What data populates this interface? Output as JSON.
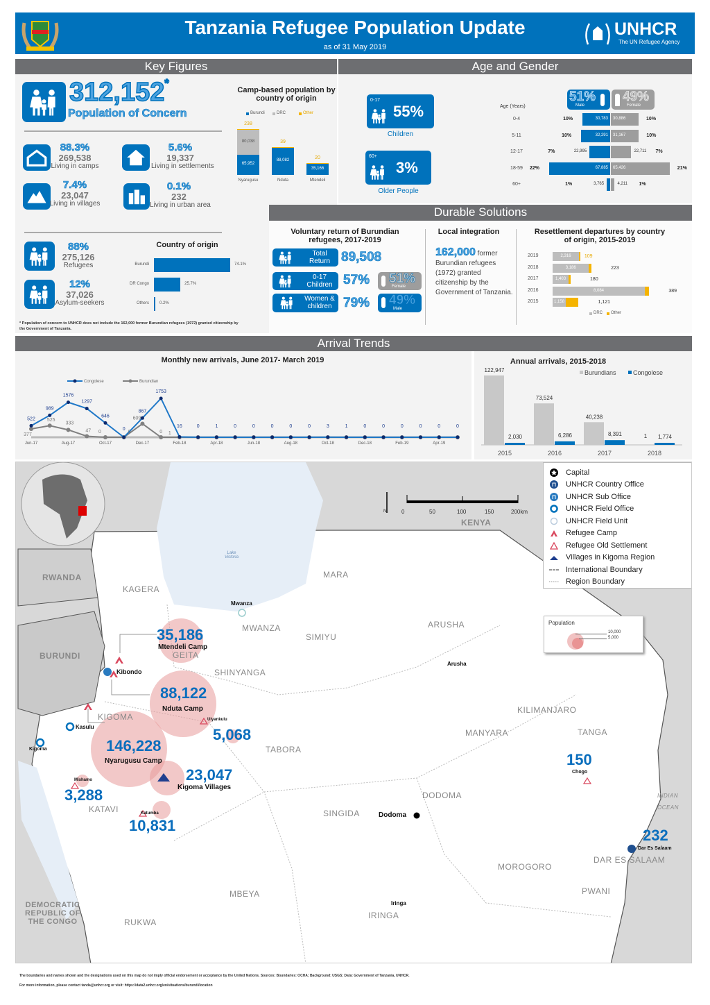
{
  "header": {
    "title": "Tanzania Refugee Population Update",
    "subtitle": "as of 31 May 2019",
    "logo_text": "UNHCR",
    "logo_tagline": "The UN Refugee Agency",
    "brand_color": "#0072bc"
  },
  "sections": {
    "key_figures": "Key Figures",
    "age_gender": "Age and Gender",
    "durable": "Durable Solutions",
    "arrivals": "Arrival Trends"
  },
  "key_figures": {
    "total": "312,152",
    "total_mark": "*",
    "total_label": "Population of Concern",
    "items": [
      {
        "pct": "88.3%",
        "value": "269,538",
        "label": "Living in camps",
        "icon": "camp-icon"
      },
      {
        "pct": "5.6%",
        "value": "19,337",
        "label": "Living in settlements",
        "icon": "house-icon"
      },
      {
        "pct": "7.4%",
        "value": "23,047",
        "label": "Living in villages",
        "icon": "mountain-icon"
      },
      {
        "pct": "0.1%",
        "value": "232",
        "label": "Living in urban area",
        "icon": "city-icon"
      }
    ],
    "status": [
      {
        "pct": "88%",
        "value": "275,126",
        "label": "Refugees"
      },
      {
        "pct": "12%",
        "value": "37,026",
        "label": "Asylum-seekers"
      }
    ],
    "footnote": "* Population of concern to UNHCR does not include the 162,000 former Burundian refugees (1972) granted citizenship by the Government of Tanzania."
  },
  "chart_data": [
    {
      "id": "camp",
      "type": "bar",
      "stacked": true,
      "title": "Camp-based population by country of origin",
      "categories": [
        "Nyarugusu",
        "Nduta",
        "Mtendeli"
      ],
      "series": [
        {
          "name": "Burundi",
          "values": [
            65952,
            88082,
            35166
          ],
          "color": "#0072bc"
        },
        {
          "name": "DRC",
          "values": [
            80038,
            0,
            0
          ],
          "color": "#bdbdbd"
        },
        {
          "name": "Other",
          "values": [
            238,
            39,
            20
          ],
          "color": "#f5b400"
        }
      ],
      "labels": [
        [
          "65,952",
          "88,082",
          "35,166"
        ],
        [
          "80,038",
          "",
          ""
        ],
        [
          "238",
          "39",
          "20"
        ]
      ]
    },
    {
      "id": "origin",
      "type": "bar",
      "orientation": "horizontal",
      "title": "Country of origin",
      "categories": [
        "Burundi",
        "DR Congo",
        "Others"
      ],
      "values": [
        74.1,
        25.7,
        0.2
      ],
      "labels": [
        "74.1%",
        "25.7%",
        "0.2%"
      ],
      "color": "#0072bc"
    },
    {
      "id": "pyramid",
      "type": "bar",
      "orientation": "horizontal",
      "axis_label": "Age (Years)",
      "categories": [
        "0-4",
        "5-11",
        "12-17",
        "18-59",
        "60+"
      ],
      "series": [
        {
          "name": "Male",
          "values": [
            30783,
            32291,
            22995,
            67885,
            3765
          ],
          "pct": [
            "10%",
            "10%",
            "7%",
            "22%",
            "1%"
          ],
          "labels": [
            "30,783",
            "32,291",
            "22,995",
            "67,885",
            "3,765"
          ],
          "color": "#0072bc"
        },
        {
          "name": "Female",
          "values": [
            30886,
            31167,
            22711,
            65426,
            4211
          ],
          "pct": [
            "10%",
            "10%",
            "7%",
            "21%",
            "1%"
          ],
          "labels": [
            "30,886",
            "31,167",
            "22,711",
            "65,426",
            "4,211"
          ],
          "color": "#9d9d9d"
        }
      ]
    },
    {
      "id": "resettle",
      "type": "bar",
      "orientation": "horizontal",
      "stacked": true,
      "title": "Resettlement departures by country of origin, 2015-2019",
      "categories": [
        "2019",
        "2018",
        "2017",
        "2016",
        "2015"
      ],
      "series": [
        {
          "name": "DRC",
          "values": [
            2316,
            3186,
            1403,
            8084,
            1158
          ],
          "labels": [
            "2,316",
            "3,186",
            "1,403",
            "8,084",
            "1,158"
          ],
          "color": "#bdbdbd"
        },
        {
          "name": "Other",
          "values": [
            109,
            223,
            180,
            389,
            1121
          ],
          "labels": [
            "109",
            "223",
            "180",
            "389",
            "1,121"
          ],
          "color": "#f5b400"
        }
      ]
    },
    {
      "id": "monthly",
      "type": "line",
      "title": "Monthly new arrivals, June 2017- March 2019",
      "x": [
        "Jun-17",
        "Jul-17",
        "Aug-17",
        "Sep-17",
        "Oct-17",
        "Nov-17",
        "Dec-17",
        "Jan-18",
        "Feb-18",
        "Mar-18",
        "Apr-18",
        "May-18",
        "Jun-18",
        "Jul-18",
        "Aug-18",
        "Sep-18",
        "Oct-18",
        "Nov-18",
        "Dec-18",
        "Jan-19",
        "Feb-19",
        "Mar-19",
        "Apr-19",
        "May-19"
      ],
      "tick_labels": [
        "Jun-17",
        "Aug-17",
        "Oct-17",
        "Dec-17",
        "Feb-18",
        "Apr-18",
        "Jun-18",
        "Aug-18",
        "Oct-18",
        "Dec-18",
        "Feb-19",
        "Apr-19"
      ],
      "series": [
        {
          "name": "Congolese",
          "values": [
            522,
            989,
            1576,
            1297,
            646,
            0,
            867,
            1753,
            16,
            0,
            1,
            0,
            0,
            0,
            0,
            0,
            3,
            1,
            0,
            0,
            0,
            0,
            0,
            0
          ],
          "color": "#1f78c8"
        },
        {
          "name": "Burundian",
          "values": [
            377,
            525,
            333,
            47,
            0,
            0,
            609,
            0,
            1,
            0,
            0,
            0,
            0,
            0,
            0,
            0,
            0,
            0,
            0,
            0,
            0,
            0,
            0,
            0
          ],
          "color": "#808080"
        }
      ]
    },
    {
      "id": "annual",
      "type": "bar",
      "title": "Annual arrivals, 2015-2018",
      "categories": [
        "2015",
        "2016",
        "2017",
        "2018"
      ],
      "series": [
        {
          "name": "Burundians",
          "values": [
            122947,
            73524,
            40238,
            1
          ],
          "labels": [
            "122,947",
            "73,524",
            "40,238",
            "1"
          ],
          "color": "#c8c8c8"
        },
        {
          "name": "Congolese",
          "values": [
            2030,
            6286,
            8391,
            1774
          ],
          "labels": [
            "2,030",
            "6,286",
            "8,391",
            "1,774"
          ],
          "color": "#0072bc"
        }
      ]
    }
  ],
  "age_gender": {
    "children": {
      "range": "0-17",
      "pct": "55%",
      "label": "Children"
    },
    "older": {
      "range": "60+",
      "pct": "3%",
      "label": "Older People"
    },
    "male": {
      "pct": "51%",
      "label": "Male"
    },
    "female": {
      "pct": "49%",
      "label": "Female"
    }
  },
  "durable": {
    "voluntary_title": "Voluntary return of Burundian refugees,  2017-2019",
    "total_label": "Total Return",
    "total": "89,508",
    "children_label": "0-17 Children",
    "children_pct": "57%",
    "women_label": "Women & children",
    "women_pct": "79%",
    "female_pct": "51%",
    "female_label": "Female",
    "male_pct": "49%",
    "male_label": "Male",
    "local_title": "Local integration",
    "local_num": "162,000",
    "local_text1": " former",
    "local_text2": "Burundian refugees (1972) granted citizenship by the Government of Tanzania."
  },
  "map": {
    "legend": [
      "Capital",
      "UNHCR Country Office",
      "UNHCR Sub Office",
      "UNHCR Field Office",
      "UNHCR Field Unit",
      "Refugee Camp",
      "Refugee Old Settlement",
      "Villages in Kigoma Region",
      "International Boundary",
      "Region Boundary"
    ],
    "population_legend": {
      "title": "Population",
      "values": [
        "10,000",
        "5,000"
      ]
    },
    "scale": [
      "0",
      "50",
      "100",
      "150",
      "200km"
    ],
    "north": "N",
    "countries": {
      "rwanda": "RWANDA",
      "burundi": "BURUNDI",
      "kenya": "KENYA",
      "drc": "DEMOCRATIC REPUBLIC OF THE CONGO",
      "ocean": "INDIAN OCEAN",
      "lake": "Lake Victoria"
    },
    "regions": [
      "KAGERA",
      "MARA",
      "MWANZA",
      "SIMIYU",
      "ARUSHA",
      "GEITA",
      "SHINYANGA",
      "KIGOMA",
      "KILIMANJARO",
      "MANYARA",
      "TANGA",
      "TABORA",
      "DODOMA",
      "SINGIDA",
      "KATAVI",
      "MOROGORO",
      "DAR ES SALAAM",
      "PWANI",
      "MBEYA",
      "IRINGA",
      "RUKWA"
    ],
    "cities": [
      "Mwanza",
      "Arusha",
      "Dodoma",
      "Kibondo",
      "Kasulu",
      "Kigoma",
      "Ulyankulu",
      "Mishamo",
      "Katumba",
      "Chogo",
      "Dar Es Salaam",
      "Iringa"
    ],
    "sites": [
      {
        "value": "35,186",
        "name": "Mtendeli Camp"
      },
      {
        "value": "88,122",
        "name": "Nduta Camp"
      },
      {
        "value": "146,228",
        "name": "Nyarugusu Camp"
      },
      {
        "value": "23,047",
        "name": "Kigoma Villages"
      },
      {
        "value": "5,068"
      },
      {
        "value": "3,288"
      },
      {
        "value": "10,831"
      },
      {
        "value": "150"
      },
      {
        "value": "232"
      }
    ]
  },
  "footer": {
    "line1": "The boundaries and names shown and the designations used on this map do not imply official endorsement or acceptance by the United Nations. Sources: Boundaries: OCHA; Background: USGS; Data: Government of Tanzania, UNHCR.",
    "line2": "For more information, please contact tanda@unhcr.org or visit: https://data2.unhcr.org/en/situations/burundi/location"
  }
}
